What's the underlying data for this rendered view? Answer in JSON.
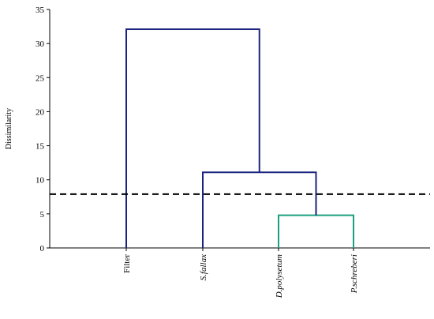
{
  "chart_data": {
    "type": "dendrogram",
    "title": "",
    "xlabel": "",
    "ylabel": "Dissimilarity",
    "ylim": [
      0,
      35
    ],
    "yticks": [
      0,
      5,
      10,
      15,
      20,
      25,
      30,
      35
    ],
    "grid": false,
    "leaves": [
      {
        "label": "Filter",
        "italic": false
      },
      {
        "label": "S.fallax",
        "italic": true
      },
      {
        "label": "D.polysetum",
        "italic": true
      },
      {
        "label": "P.schreberi",
        "italic": true
      }
    ],
    "merges": [
      {
        "left": "leaf:2",
        "right": "leaf:3",
        "height": 4.8,
        "color": "#1aa07f"
      },
      {
        "left": "leaf:1",
        "right": "merge:0",
        "height": 11.1,
        "color": "#1a237e"
      },
      {
        "left": "leaf:0",
        "right": "merge:1",
        "height": 32.1,
        "color": "#1a237e"
      }
    ],
    "truncation_line": {
      "value": 7.9,
      "style": "dashed",
      "color": "#000000"
    }
  }
}
